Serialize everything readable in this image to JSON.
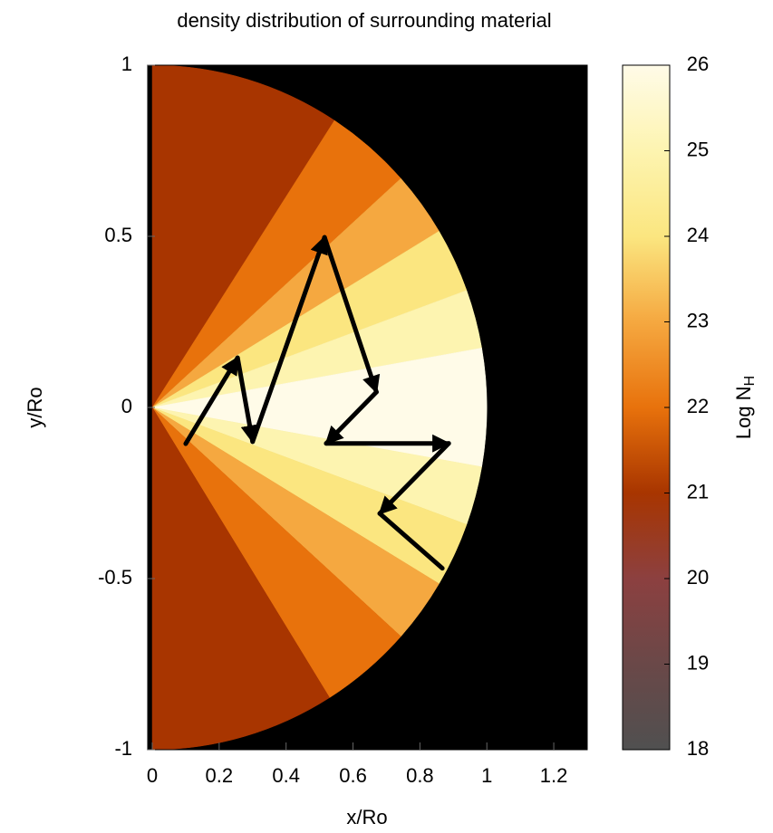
{
  "chart_data": {
    "type": "sector_map",
    "title": "density distribution of surrounding material",
    "xlabel": "x/Ro",
    "ylabel": "y/Ro",
    "colorbar_label": "Log N",
    "colorbar_label_sub": "H",
    "xlim": [
      0,
      1.3
    ],
    "ylim": [
      -1,
      1
    ],
    "xticks": [
      0,
      0.2,
      0.4,
      0.6,
      0.8,
      1,
      1.2
    ],
    "yticks": [
      -1,
      -0.5,
      0,
      0.5,
      1
    ],
    "clim": [
      18,
      26
    ],
    "cticks": [
      18,
      19,
      20,
      21,
      22,
      23,
      24,
      25,
      26
    ],
    "background": "#000000",
    "radius": 1,
    "colormap": [
      {
        "value": 18,
        "color": "#505050"
      },
      {
        "value": 19,
        "color": "#6a4848"
      },
      {
        "value": 20,
        "color": "#8c4040"
      },
      {
        "value": 21,
        "color": "#a83500"
      },
      {
        "value": 22,
        "color": "#e8720c"
      },
      {
        "value": 23,
        "color": "#f5a840"
      },
      {
        "value": 24,
        "color": "#fbe680"
      },
      {
        "value": 25,
        "color": "#fdf4b0"
      },
      {
        "value": 26,
        "color": "#fffbe8"
      }
    ],
    "sectors": [
      {
        "angle_min": 57,
        "angle_max": 90,
        "value": 21
      },
      {
        "angle_min": 42,
        "angle_max": 57,
        "value": 22
      },
      {
        "angle_min": 31,
        "angle_max": 42,
        "value": 23
      },
      {
        "angle_min": 20,
        "angle_max": 31,
        "value": 24
      },
      {
        "angle_min": 10,
        "angle_max": 20,
        "value": 25
      },
      {
        "angle_min": -10,
        "angle_max": 10,
        "value": 26
      },
      {
        "angle_min": -20,
        "angle_max": -10,
        "value": 25
      },
      {
        "angle_min": -31,
        "angle_max": -20,
        "value": 24
      },
      {
        "angle_min": -42,
        "angle_max": -31,
        "value": 23
      },
      {
        "angle_min": -58,
        "angle_max": -42,
        "value": 22
      },
      {
        "angle_min": -90,
        "angle_max": -58,
        "value": 21
      }
    ],
    "path": {
      "color": "#000000",
      "x": [
        0.1,
        0.255,
        0.3,
        0.515,
        0.67,
        0.52,
        0.886,
        0.68,
        0.867
      ],
      "y": [
        -0.106,
        0.145,
        -0.1,
        0.497,
        0.045,
        -0.105,
        -0.105,
        -0.31,
        -0.47
      ]
    }
  }
}
